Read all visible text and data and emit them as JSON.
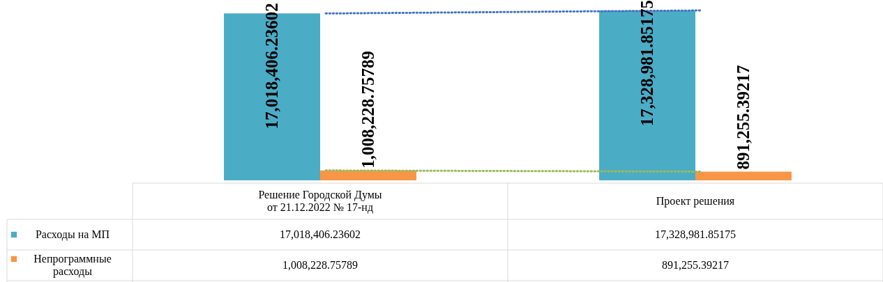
{
  "chart_data": {
    "type": "bar",
    "categories": [
      "Решение Городской Думы\nот 21.12.2022 № 17-нд",
      "Проект решения"
    ],
    "series": [
      {
        "name": "Расходы на МП",
        "color": "#4bacc6",
        "values": [
          17018406.23602,
          17328981.85175
        ],
        "value_labels": [
          "17,018,406.23602",
          "17,328,981.85175"
        ]
      },
      {
        "name": "Непрограммные расходы",
        "color": "#f79646",
        "values": [
          1008228.75789,
          891255.39217
        ],
        "value_labels": [
          "1,008,228.75789",
          "891,255.39217"
        ]
      },
      {
        "type": "line",
        "line_style": "dotted",
        "color": "#4472c4",
        "values": [
          17018406.23602,
          17328981.85175
        ]
      },
      {
        "type": "line",
        "line_style": "dotted",
        "color": "#9bbb59",
        "values": [
          1008228.75789,
          891255.39217
        ]
      }
    ],
    "legend": "bottom left"
  }
}
